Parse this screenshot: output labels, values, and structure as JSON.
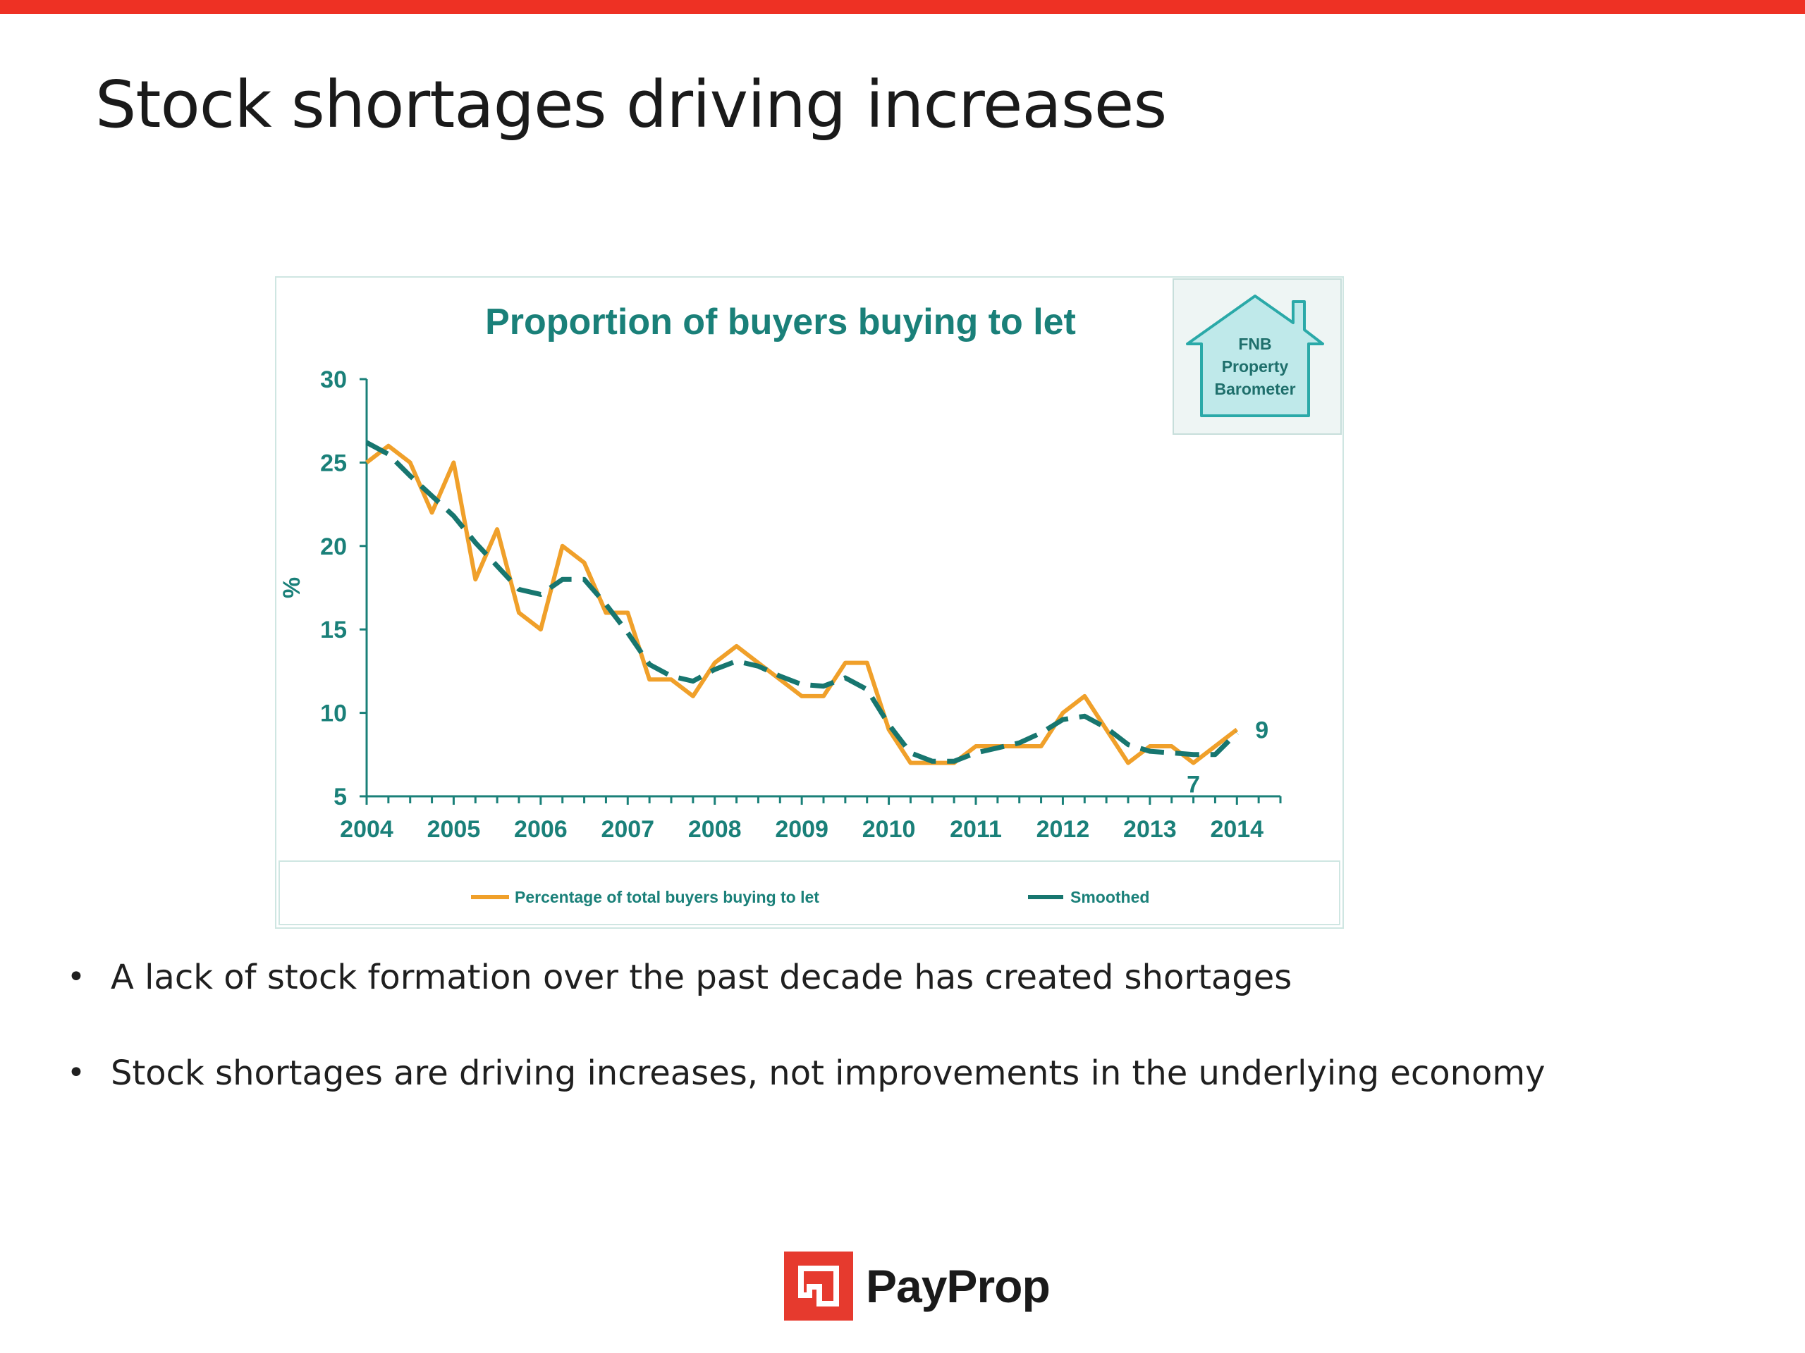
{
  "slide": {
    "title": "Stock shortages driving increases",
    "bullets": [
      "A lack of stock formation over the past decade has created shortages",
      "Stock shortages are driving increases, not improvements in the underlying economy"
    ],
    "logo_text": "PayProp"
  },
  "colors": {
    "top_bar": "#ee3124",
    "chart_teal": "#1a8079",
    "series_orange": "#f0a02a",
    "series_teal": "#17766f",
    "logo_red": "#e63a2e"
  },
  "badge": {
    "lines": [
      "FNB",
      "Property",
      "Barometer"
    ],
    "icon": "house-icon"
  },
  "chart_data": {
    "type": "line",
    "title": "Proportion of buyers buying to let",
    "xlabel": "",
    "ylabel": "%",
    "xlim": [
      2004,
      2014.5
    ],
    "ylim": [
      5,
      30
    ],
    "x_ticks": [
      2004,
      2005,
      2006,
      2007,
      2008,
      2009,
      2010,
      2011,
      2012,
      2013,
      2014
    ],
    "y_ticks": [
      5,
      10,
      15,
      20,
      25,
      30
    ],
    "grid": false,
    "legend_position": "bottom",
    "x": [
      2004.0,
      2004.25,
      2004.5,
      2004.75,
      2005.0,
      2005.25,
      2005.5,
      2005.75,
      2006.0,
      2006.25,
      2006.5,
      2006.75,
      2007.0,
      2007.25,
      2007.5,
      2007.75,
      2008.0,
      2008.25,
      2008.5,
      2008.75,
      2009.0,
      2009.25,
      2009.5,
      2009.75,
      2010.0,
      2010.25,
      2010.5,
      2010.75,
      2011.0,
      2011.25,
      2011.5,
      2011.75,
      2012.0,
      2012.25,
      2012.5,
      2012.75,
      2013.0,
      2013.25,
      2013.5,
      2013.75,
      2014.0,
      2014.25
    ],
    "series": [
      {
        "name": "Percentage of total buyers buying to let",
        "color": "#f0a02a",
        "style": "solid",
        "values": [
          25,
          26,
          25,
          22,
          25,
          18,
          21,
          16,
          15,
          20,
          19,
          16,
          16,
          12,
          12,
          11,
          13,
          14,
          13,
          12,
          11,
          11,
          13,
          13,
          9,
          7,
          7,
          7,
          8,
          8,
          8,
          8,
          10,
          11,
          9,
          7,
          8,
          8,
          7,
          8,
          9,
          null
        ]
      },
      {
        "name": "Smoothed",
        "color": "#17766f",
        "style": "dashed",
        "values": [
          26.2,
          25.5,
          24.2,
          23.0,
          21.8,
          20.2,
          18.8,
          17.4,
          17.1,
          18.0,
          18.0,
          16.5,
          14.8,
          12.9,
          12.2,
          11.9,
          12.6,
          13.1,
          12.8,
          12.2,
          11.7,
          11.6,
          12.1,
          11.4,
          9.3,
          7.6,
          7.1,
          7.1,
          7.6,
          7.9,
          8.2,
          8.8,
          9.6,
          9.8,
          9.1,
          8.1,
          7.7,
          7.6,
          7.5,
          7.5,
          8.8,
          null
        ]
      }
    ],
    "annotations": [
      {
        "text": "9",
        "x": 2014.0,
        "y": 9
      },
      {
        "text": "7",
        "x": 2013.5,
        "y": 7
      }
    ]
  }
}
